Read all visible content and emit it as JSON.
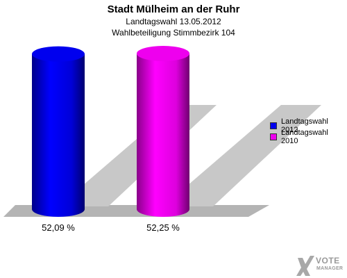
{
  "header": {
    "title": "Stadt Mülheim an der Ruhr",
    "subtitle1": "Landtagswahl 13.05.2012",
    "subtitle2": "Wahlbeteiligung Stimmbezirk 104"
  },
  "chart_data": {
    "type": "bar",
    "title": "Stadt Mülheim an der Ruhr",
    "categories": [
      "Landtagswahl 2012",
      "Landtagswahl 2010"
    ],
    "values": [
      52.09,
      52.25
    ],
    "value_labels": [
      "52,09 %",
      "52,25 %"
    ],
    "colors": [
      "#0000ee",
      "#ee00ee"
    ],
    "xlabel": "",
    "ylabel": "",
    "legend_placement": "right",
    "grid": false
  },
  "legend": {
    "items": [
      {
        "label": "Landtagswahl 2012",
        "color": "#0000ee"
      },
      {
        "label": "Landtagswahl 2010",
        "color": "#ee00ee"
      }
    ]
  },
  "logo": {
    "line1": "VOTE",
    "line2": "MANAGER"
  }
}
